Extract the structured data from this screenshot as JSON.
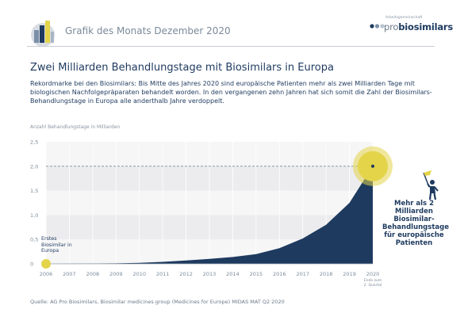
{
  "header": {
    "grafik_title": "Grafik des Monats Dezember 2020",
    "brand_sup": "Arbeitsgemeinschaft",
    "brand_pro": "pro",
    "brand_bio": "biosimilars"
  },
  "main_title": "Zwei Milliarden Behandlungstage mit Biosimilars in Europa",
  "intro": "Rekordmarke bei den Biosimilars: Bis Mitte des Jahres 2020 sind europäische Patienten mehr als zwei Milliarden Tage mit biologischen Nachfolgepräparaten behandelt worden. In den vergangenen zehn Jahren hat sich somit die Zahl der Biosimilars-Behandlungstage in Europa alle anderthalb Jahre verdoppelt.",
  "annotations": {
    "callout": "Mehr als 2 Milliarden Biosimilar-Behandlungstage für europäische Patienten",
    "first": "Erstes Biosimilar in Europa",
    "x_note_1": "Ende zum",
    "x_note_2": "2. Quartal"
  },
  "source": "Quelle:   AG Pro Biosimilars, Biosimilar medicines group (Medicines for Europe) MIDAS MAT Q2 2020",
  "colors": {
    "area": "#1e3a5f",
    "accent": "#e3d44a",
    "band_dark": "#ececee",
    "band_light": "#f6f6f7",
    "text": "#1e3a5f"
  },
  "chart_data": {
    "type": "area",
    "ylabel": "Anzahl Behandlungstage in Milliarden",
    "x": [
      "2006",
      "2007",
      "2008",
      "2009",
      "2010",
      "2011",
      "2012",
      "2013",
      "2014",
      "2015",
      "2016",
      "2017",
      "2018",
      "2019",
      "2020"
    ],
    "values": [
      0,
      0.003,
      0.006,
      0.01,
      0.02,
      0.04,
      0.07,
      0.1,
      0.14,
      0.2,
      0.32,
      0.52,
      0.8,
      1.25,
      2.0
    ],
    "yticks": [
      "0",
      "0,5",
      "1,0",
      "1,5",
      "2,0",
      "2,5"
    ],
    "ylim": [
      0,
      2.5
    ],
    "reference_line": 2.0
  }
}
